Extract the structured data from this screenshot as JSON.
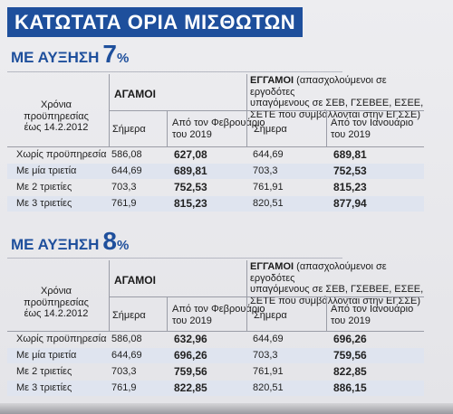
{
  "title": "ΚΑΤΩΤΑΤΑ ΟΡΙΑ ΜΙΣΘΩΤΩΝ",
  "sections": [
    {
      "label": "ΜΕ ΑΥΞΗΣΗ",
      "number": "7",
      "percent": "%",
      "header": {
        "years": "Χρόνια\nπροϋπηρεσίας\nέως 14.2.2012",
        "single": "ΑΓΑΜΟΙ",
        "married_bold": "ΕΓΓΑΜΟΙ",
        "married_note": "(απασχολούμενοι σε εργοδότες\nυπαγόμενους σε ΣΕΒ, ΓΣΕΒΕΕ, ΕΣΕΕ,\nΣΕΤΕ που συμβάλλονται στην ΕΓΣΣΕ)",
        "today": "Σήμερα",
        "from_feb": "Από τον Φεβρουάριο\nτου 2019",
        "today2": "Σήμερα",
        "from_jan": "Από τον Ιανουάριο\nτου 2019"
      },
      "rows": [
        {
          "label": "Χωρίς προϋπηρεσία",
          "s_now": "586,08",
          "s_feb": "627,08",
          "m_now": "644,69",
          "m_jan": "689,81"
        },
        {
          "label": "Με μία τριετία",
          "s_now": "644,69",
          "s_feb": "689,81",
          "m_now": "703,3",
          "m_jan": "752,53"
        },
        {
          "label": "Με 2 τριετίες",
          "s_now": "703,3",
          "s_feb": "752,53",
          "m_now": "761,91",
          "m_jan": "815,23"
        },
        {
          "label": "Με 3 τριετίες",
          "s_now": "761,9",
          "s_feb": "815,23",
          "m_now": "820,51",
          "m_jan": "877,94"
        }
      ]
    },
    {
      "label": "ΜΕ ΑΥΞΗΣΗ",
      "number": "8",
      "percent": "%",
      "header": {
        "years": "Χρόνια\nπροϋπηρεσίας\nέως 14.2.2012",
        "single": "ΑΓΑΜΟΙ",
        "married_bold": "ΕΓΓΑΜΟΙ",
        "married_note": "(απασχολούμενοι σε εργοδότες\nυπαγόμενους σε ΣΕΒ, ΓΣΕΒΕΕ, ΕΣΕΕ,\nΣΕΤΕ που συμβάλλονται στην ΕΓΣΣΕ)",
        "today": "Σήμερα",
        "from_feb": "Από τον Φεβρουάριο\nτου 2019",
        "today2": "Σήμερα",
        "from_jan": "Από τον Ιανουάριο\nτου 2019"
      },
      "rows": [
        {
          "label": "Χωρίς προϋπηρεσία",
          "s_now": "586,08",
          "s_feb": "632,96",
          "m_now": "644,69",
          "m_jan": "696,26"
        },
        {
          "label": "Με μία τριετία",
          "s_now": "644,69",
          "s_feb": "696,26",
          "m_now": "703,3",
          "m_jan": "759,56"
        },
        {
          "label": "Με 2 τριετίες",
          "s_now": "703,3",
          "s_feb": "759,56",
          "m_now": "761,91",
          "m_jan": "822,85"
        },
        {
          "label": "Με 3 τριετίες",
          "s_now": "761,9",
          "s_feb": "822,85",
          "m_now": "820,51",
          "m_jan": "886,15"
        }
      ]
    }
  ]
}
